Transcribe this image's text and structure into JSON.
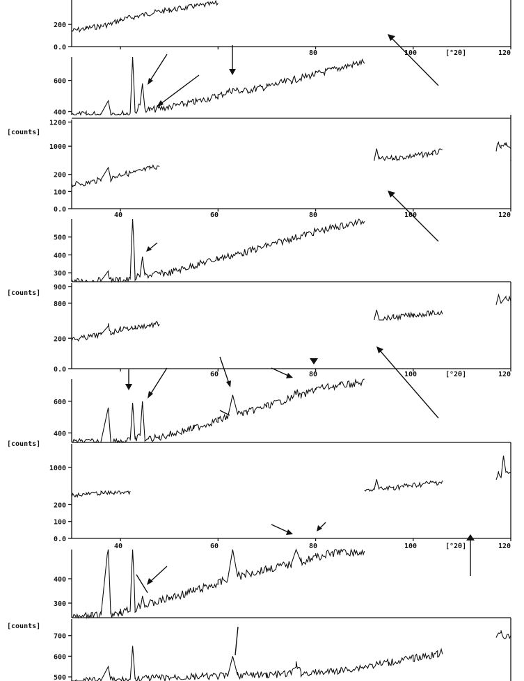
{
  "chart_data": {
    "type": "line",
    "title": "",
    "xlabel": "[°2θ]",
    "xlim": [
      30,
      120
    ],
    "ylabel": "[counts]",
    "x_ticks": [
      "40",
      "60",
      "80",
      "100",
      "120"
    ],
    "panels": [
      {
        "id": "p1",
        "y_ticks": [
          "0.0",
          "200"
        ],
        "ylim": [
          0,
          420
        ],
        "series": [
          {
            "x": [
              30,
              33,
              36,
              38,
              40,
              43,
              46,
              50,
              55,
              60
            ],
            "y": [
              140,
              165,
              185,
              205,
              240,
              270,
              300,
              330,
              360,
              390
            ]
          }
        ]
      },
      {
        "id": "p2",
        "y_ticks": [
          "400",
          "600"
        ],
        "ylim": [
          380,
          750
        ],
        "series": [
          {
            "x": [
              30,
              33,
              36,
              37.5,
              38,
              40,
              42,
              42.5,
              43,
              44,
              44.5,
              45,
              46,
              50,
              55,
              60,
              63,
              65,
              70,
              75,
              80,
              85,
              90
            ],
            "y": [
              380,
              380,
              385,
              470,
              390,
              385,
              390,
              760,
              395,
              440,
              580,
              420,
              410,
              430,
              460,
              500,
              540,
              530,
              560,
              600,
              640,
              680,
              720
            ]
          }
        ]
      },
      {
        "id": "p3",
        "y_ticks": [
          "1000",
          "1200"
        ],
        "ylim": [
          880,
          1220
        ],
        "series": [
          {
            "x": [
              92,
              92.5,
              93,
              96,
              100,
              104,
              106
            ],
            "y": [
              880,
              980,
              890,
              900,
              920,
              940,
              960
            ]
          },
          {
            "x": [
              117,
              117.5,
              118,
              119,
              120
            ],
            "y": [
              980,
              1010,
              990,
              1010,
              1000
            ]
          }
        ]
      },
      {
        "id": "p4",
        "y_ticks": [
          "0.0",
          "100",
          "200"
        ],
        "ylim": [
          0,
          280
        ],
        "series": [
          {
            "x": [
              30,
              33,
              36,
              37.5,
              38,
              40,
              43,
              46,
              48
            ],
            "y": [
              140,
              150,
              170,
              240,
              175,
              200,
              210,
              235,
              250
            ]
          }
        ]
      },
      {
        "id": "p5",
        "y_ticks": [
          "300",
          "400",
          "500"
        ],
        "ylim": [
          250,
          600
        ],
        "series": [
          {
            "x": [
              30,
              36,
              37.5,
              38,
              40,
              42,
              42.5,
              43,
              44,
              44.5,
              45,
              50,
              55,
              60,
              65,
              70,
              75,
              80,
              85,
              90
            ],
            "y": [
              250,
              255,
              310,
              260,
              258,
              262,
              650,
              270,
              280,
              390,
              285,
              300,
              340,
              380,
              410,
              450,
              490,
              530,
              560,
              590
            ]
          }
        ]
      },
      {
        "id": "p6",
        "y_ticks": [
          "800",
          "900"
        ],
        "ylim": [
          700,
          920
        ],
        "series": [
          {
            "x": [
              92,
              92.5,
              93,
              96,
              100,
              104,
              106
            ],
            "y": [
              700,
              760,
              705,
              715,
              730,
              740,
              745
            ]
          },
          {
            "x": [
              117,
              117.5,
              118,
              119,
              120
            ],
            "y": [
              790,
              850,
              800,
              840,
              820
            ]
          }
        ]
      },
      {
        "id": "p7",
        "y_ticks": [
          "0.0",
          "200"
        ],
        "ylim": [
          0,
          320
        ],
        "series": [
          {
            "x": [
              30,
              33,
              36,
              37.5,
              38,
              40,
              43,
              46,
              48
            ],
            "y": [
              190,
              205,
              225,
              280,
              235,
              260,
              270,
              285,
              295
            ]
          }
        ]
      },
      {
        "id": "p8",
        "y_ticks": [
          "400",
          "600"
        ],
        "ylim": [
          340,
          740
        ],
        "series": [
          {
            "x": [
              30,
              36,
              37.5,
              38,
              41,
              42,
              42.5,
              43,
              44,
              44.5,
              45,
              48,
              50,
              55,
              60,
              62,
              63,
              64,
              66,
              70,
              75,
              76,
              77,
              80,
              85,
              90
            ],
            "y": [
              340,
              345,
              560,
              350,
              348,
              352,
              590,
              360,
              380,
              600,
              360,
              370,
              390,
              430,
              480,
              500,
              640,
              520,
              530,
              570,
              620,
              660,
              630,
              680,
              700,
              720
            ]
          }
        ]
      },
      {
        "id": "p9",
        "y_ticks": [
          "1000"
        ],
        "ylim": [
          800,
          1200
        ],
        "series": [
          {
            "x": [
              90,
              92,
              92.5,
              93,
              96,
              100,
              104,
              106
            ],
            "y": [
              800,
              810,
              900,
              815,
              830,
              850,
              870,
              880
            ]
          },
          {
            "x": [
              117,
              117.5,
              118,
              118.5,
              119,
              120
            ],
            "y": [
              900,
              950,
              910,
              1100,
              960,
              940
            ]
          }
        ]
      },
      {
        "id": "p10",
        "y_ticks": [
          "0.0",
          "100",
          "200"
        ],
        "ylim": [
          0,
          280
        ],
        "series": [
          {
            "x": [
              30,
              33,
              36,
              40,
              42
            ],
            "y": [
              255,
              262,
              268,
              272,
              275
            ]
          }
        ]
      },
      {
        "id": "p11",
        "y_ticks": [
          "300",
          "400"
        ],
        "ylim": [
          240,
          520
        ],
        "series": [
          {
            "x": [
              30,
              34,
              36,
              37.5,
              38,
              40,
              42,
              42.5,
              43,
              44,
              44.5,
              45,
              50,
              55,
              60,
              62,
              63,
              64,
              70,
              75,
              76,
              77,
              80,
              85,
              90
            ],
            "y": [
              240,
              245,
              250,
              540,
              255,
              265,
              270,
              560,
              275,
              290,
              330,
              290,
              320,
              350,
              380,
              400,
              520,
              410,
              440,
              460,
              520,
              470,
              490,
              510,
              505
            ]
          }
        ]
      },
      {
        "id": "p12",
        "y_ticks": [
          "500",
          "600",
          "700"
        ],
        "ylim": [
          480,
          780
        ],
        "series": [
          {
            "x": [
              30,
              36,
              37.5,
              38,
              42,
              42.5,
              43,
              48,
              55,
              62,
              63,
              64,
              70,
              75,
              76,
              77,
              80,
              85,
              90,
              95,
              100,
              105,
              106
            ],
            "y": [
              480,
              482,
              550,
              484,
              486,
              650,
              490,
              495,
              500,
              505,
              600,
              508,
              510,
              515,
              560,
              518,
              520,
              530,
              550,
              570,
              590,
              610,
              620
            ]
          },
          {
            "x": [
              117,
              118,
              119,
              120
            ],
            "y": [
              680,
              720,
              690,
              700
            ]
          }
        ]
      }
    ],
    "grid": false,
    "legend": "none"
  }
}
